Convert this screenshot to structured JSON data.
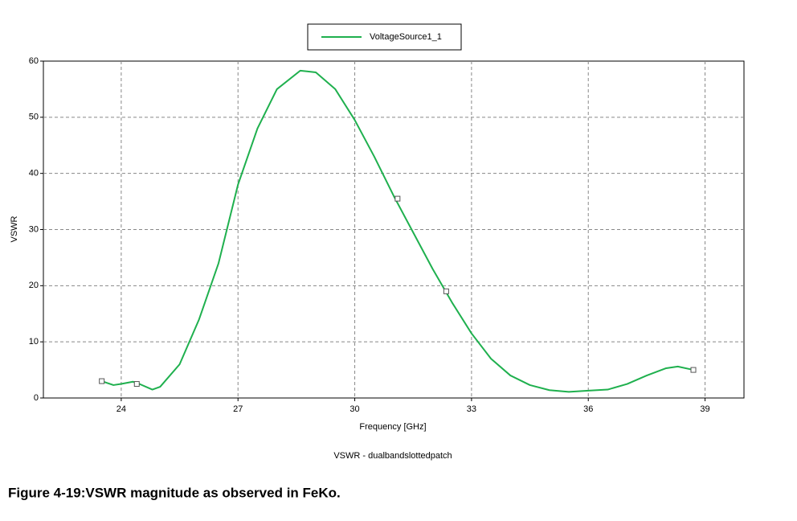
{
  "chart_data": {
    "type": "line",
    "title": "VSWR - dualbandslottedpatch",
    "x_label": "Frequency [GHz]",
    "y_label": "VSWR",
    "caption": "Figure 4-19:VSWR magnitude as observed in FeKo.",
    "xlim": [
      22,
      40
    ],
    "xticks": [
      24,
      27,
      30,
      33,
      36,
      39
    ],
    "ylim": [
      0,
      60
    ],
    "yticks": [
      0,
      10,
      20,
      30,
      40,
      50,
      60
    ],
    "grid": true,
    "legend": "top",
    "series": [
      {
        "name": "VoltageSource1_1",
        "color": "#1fb04e",
        "x": [
          23.5,
          23.8,
          24.0,
          24.3,
          24.5,
          24.8,
          25.0,
          25.5,
          26.0,
          26.5,
          27.0,
          27.5,
          28.0,
          28.6,
          29.0,
          29.5,
          30.0,
          30.5,
          31.0,
          31.5,
          32.0,
          32.5,
          33.0,
          33.5,
          34.0,
          34.5,
          35.0,
          35.5,
          36.0,
          36.5,
          37.0,
          37.5,
          38.0,
          38.3,
          38.7
        ],
        "values": [
          3.0,
          2.3,
          2.5,
          2.9,
          2.4,
          1.5,
          2.0,
          6,
          14,
          24,
          38,
          48,
          55,
          58.3,
          58,
          55,
          49.5,
          43,
          36,
          29.5,
          23,
          17,
          11.5,
          7,
          4,
          2.3,
          1.4,
          1.1,
          1.3,
          1.5,
          2.5,
          4,
          5.3,
          5.6,
          5.0
        ],
        "markers": {
          "x": [
            23.5,
            24.4,
            31.1,
            32.35,
            38.7
          ],
          "values": [
            3.0,
            2.5,
            35.5,
            19,
            5.0
          ]
        }
      }
    ]
  }
}
